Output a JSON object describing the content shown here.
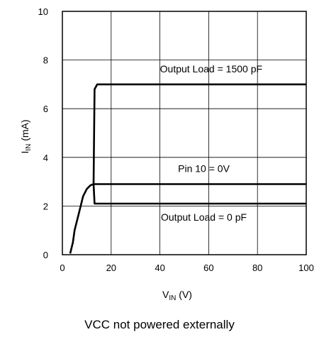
{
  "chart_data": {
    "type": "line",
    "xlabel": {
      "main": "V",
      "sub": "IN",
      "unit": " (V)"
    },
    "ylabel": {
      "main": "I",
      "sub": "IN",
      "unit": " (mA)"
    },
    "xlim": [
      0,
      100
    ],
    "ylim": [
      0,
      10
    ],
    "x_ticks": [
      "0",
      "20",
      "40",
      "60",
      "80",
      "100"
    ],
    "y_ticks": [
      "0",
      "2",
      "4",
      "6",
      "8",
      "10"
    ],
    "grid": true,
    "series": [
      {
        "name": "Output Load = 1500 pF",
        "points": [
          [
            3.2,
            0.05
          ],
          [
            3.8,
            0.3
          ],
          [
            4.3,
            0.5
          ],
          [
            5.0,
            1.0
          ],
          [
            6.5,
            1.6
          ],
          [
            7.5,
            2.0
          ],
          [
            8.5,
            2.4
          ],
          [
            10.0,
            2.7
          ],
          [
            11.5,
            2.85
          ],
          [
            12.8,
            2.9
          ],
          [
            13.2,
            6.8
          ],
          [
            14.3,
            7.0
          ],
          [
            100,
            7.0
          ]
        ]
      },
      {
        "name": "Pin 10 = 0V",
        "points": [
          [
            12.8,
            2.9
          ],
          [
            100,
            2.9
          ]
        ]
      },
      {
        "name": "Output Load = 0 pF",
        "points": [
          [
            12.8,
            2.9
          ],
          [
            13.2,
            2.1
          ],
          [
            100,
            2.1
          ]
        ]
      }
    ],
    "annotations": [
      {
        "text": "Output Load = 1500 pF",
        "x": 61,
        "y": 7.5
      },
      {
        "text": "Pin 10 = 0V",
        "x": 58,
        "y": 3.4
      },
      {
        "text": "Output Load = 0 pF",
        "x": 58,
        "y": 1.4
      }
    ]
  },
  "caption": "VCC not powered externally"
}
